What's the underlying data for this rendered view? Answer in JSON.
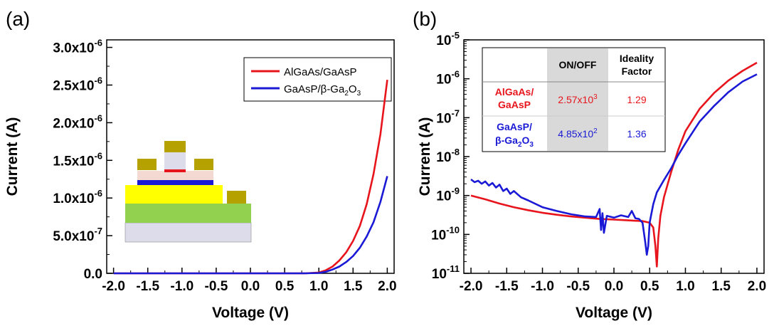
{
  "colors": {
    "red": "#e8141c",
    "blue": "#1a1ad6",
    "gold": "#b5a200",
    "yellow": "#ffff00",
    "green": "#92d050",
    "lavender": "#dcdceb",
    "pink": "#f4d9d3",
    "table_shade": "#d9d9d9"
  },
  "chart_data": [
    {
      "type": "line",
      "panel_label": "(a)",
      "xlabel": "Voltage (V)",
      "ylabel": "Current (A)",
      "xlim": [
        -2.1,
        2.1
      ],
      "ylim": [
        0,
        3.1e-06
      ],
      "x_ticks": [
        -2.0,
        -1.5,
        -1.0,
        -0.5,
        0.0,
        0.5,
        1.0,
        1.5,
        2.0
      ],
      "x_tick_labels": [
        "-2.0",
        "-1.5",
        "-1.0",
        "-0.5",
        "0.0",
        "0.5",
        "1.0",
        "1.5",
        "2.0"
      ],
      "y_ticks": [
        0,
        5e-07,
        1e-06,
        1.5e-06,
        2e-06,
        2.5e-06,
        3e-06
      ],
      "y_tick_labels": [
        {
          "m": "0.0",
          "e": ""
        },
        {
          "m": "5.0x10",
          "e": "-7"
        },
        {
          "m": "1.0x10",
          "e": "-6"
        },
        {
          "m": "1.5x10",
          "e": "-6"
        },
        {
          "m": "2.0x10",
          "e": "-6"
        },
        {
          "m": "2.5x10",
          "e": "-6"
        },
        {
          "m": "3.0x10",
          "e": "-6"
        }
      ],
      "legend": [
        {
          "text": "AlGaAs/GaAsP",
          "color": "#e8141c"
        },
        {
          "text": "GaAsP/β-Ga",
          "sub": "2",
          "text2": "O",
          "sub2": "3",
          "color": "#1a1ad6"
        }
      ],
      "series": [
        {
          "name": "AlGaAs/GaAsP",
          "color": "#e8141c",
          "x": [
            -2.0,
            -1.0,
            0.0,
            0.5,
            0.8,
            1.0,
            1.1,
            1.2,
            1.3,
            1.4,
            1.5,
            1.6,
            1.7,
            1.8,
            1.9,
            2.0
          ],
          "y": [
            0,
            0,
            0,
            0,
            0,
            1e-08,
            4e-08,
            9e-08,
            1.7e-07,
            2.8e-07,
            4.3e-07,
            6.3e-07,
            9.2e-07,
            1.32e-06,
            1.85e-06,
            2.57e-06
          ]
        },
        {
          "name": "GaAsP/β-Ga2O3",
          "color": "#1a1ad6",
          "x": [
            -2.0,
            -1.0,
            0.0,
            0.5,
            0.8,
            1.0,
            1.1,
            1.2,
            1.3,
            1.4,
            1.5,
            1.6,
            1.7,
            1.8,
            1.9,
            2.0
          ],
          "y": [
            0,
            0,
            0,
            0,
            0,
            5e-09,
            2e-08,
            5e-08,
            9e-08,
            1.5e-07,
            2.3e-07,
            3.4e-07,
            4.9e-07,
            6.8e-07,
            9.5e-07,
            1.29e-06
          ]
        }
      ]
    },
    {
      "type": "line",
      "panel_label": "(b)",
      "xlabel": "Voltage (V)",
      "ylabel": "Current (A)",
      "yscale": "log",
      "xlim": [
        -2.1,
        2.1
      ],
      "ylim": [
        1e-11,
        1e-05
      ],
      "x_ticks": [
        -2.0,
        -1.5,
        -1.0,
        -0.5,
        0.0,
        0.5,
        1.0,
        1.5,
        2.0
      ],
      "x_tick_labels": [
        "-2.0",
        "-1.5",
        "-1.0",
        "-0.5",
        "0.0",
        "0.5",
        "1.0",
        "1.5",
        "2.0"
      ],
      "y_ticks": [
        1e-11,
        1e-10,
        1e-09,
        1e-08,
        1e-07,
        1e-06,
        1e-05
      ],
      "y_tick_labels": [
        {
          "m": "10",
          "e": "-11"
        },
        {
          "m": "10",
          "e": "-10"
        },
        {
          "m": "10",
          "e": "-9"
        },
        {
          "m": "10",
          "e": "-8"
        },
        {
          "m": "10",
          "e": "-7"
        },
        {
          "m": "10",
          "e": "-6"
        },
        {
          "m": "10",
          "e": "-5"
        }
      ],
      "table": {
        "headers": [
          "ON/OFF",
          "Ideality",
          "Factor"
        ],
        "rows": [
          {
            "label1": "AlGaAs/",
            "label2": "GaAsP",
            "on_off": "2.57x10",
            "on_off_exp": "3",
            "ideality": "1.29",
            "color": "#e8141c"
          },
          {
            "label1": "GaAsP/",
            "label2": "β-Ga",
            "label2_sub": "2",
            "label2_mid": "O",
            "label2_sub2": "3",
            "on_off": "4.85x10",
            "on_off_exp": "2",
            "ideality": "1.36",
            "color": "#1a1ad6"
          }
        ]
      },
      "series": [
        {
          "name": "AlGaAs/GaAsP",
          "color": "#e8141c",
          "x": [
            -2.0,
            -1.8,
            -1.6,
            -1.4,
            -1.2,
            -1.0,
            -0.8,
            -0.6,
            -0.4,
            -0.2,
            0.0,
            0.2,
            0.4,
            0.5,
            0.55,
            0.58,
            0.6,
            0.62,
            0.65,
            0.7,
            0.8,
            0.9,
            1.0,
            1.2,
            1.4,
            1.6,
            1.8,
            2.0
          ],
          "y": [
            1e-09,
            8e-10,
            6.2e-10,
            5e-10,
            4.2e-10,
            3.6e-10,
            3.2e-10,
            2.9e-10,
            2.7e-10,
            2.5e-10,
            2.4e-10,
            2.3e-10,
            2.2e-10,
            2e-10,
            1.5e-10,
            5e-11,
            1.5e-11,
            8e-11,
            3e-10,
            9e-10,
            4e-09,
            1.5e-08,
            4.5e-08,
            1.7e-07,
            4.3e-07,
            9e-07,
            1.6e-06,
            2.6e-06
          ]
        },
        {
          "name": "GaAsP/β-Ga2O3",
          "color": "#1a1ad6",
          "x": [
            -2.0,
            -1.95,
            -1.9,
            -1.85,
            -1.8,
            -1.75,
            -1.7,
            -1.65,
            -1.6,
            -1.55,
            -1.5,
            -1.45,
            -1.4,
            -1.3,
            -1.2,
            -1.0,
            -0.8,
            -0.6,
            -0.4,
            -0.25,
            -0.2,
            -0.18,
            -0.16,
            -0.14,
            -0.1,
            0.0,
            0.1,
            0.2,
            0.25,
            0.3,
            0.35,
            0.4,
            0.44,
            0.46,
            0.48,
            0.5,
            0.55,
            0.6,
            0.7,
            0.8,
            0.9,
            1.0,
            1.2,
            1.4,
            1.6,
            1.8,
            2.0
          ],
          "y": [
            2.6e-09,
            2.2e-09,
            2.4e-09,
            2e-09,
            2.3e-09,
            1.8e-09,
            2.1e-09,
            1.6e-09,
            1.9e-09,
            1.3e-09,
            1.5e-09,
            1.1e-09,
            1.3e-09,
            9e-10,
            7.5e-10,
            5e-10,
            4e-10,
            3.3e-10,
            2.9e-10,
            2.8e-10,
            4.5e-10,
            1.3e-10,
            3.5e-10,
            1.1e-10,
            3e-10,
            2.7e-10,
            3.1e-10,
            2.8e-10,
            4e-10,
            2.6e-10,
            2.5e-10,
            2e-10,
            6e-11,
            3e-11,
            5e-11,
            2e-10,
            6e-10,
            1.2e-09,
            2.5e-09,
            5e-09,
            1.1e-08,
            2.2e-08,
            8e-08,
            2e-07,
            4.5e-07,
            8.5e-07,
            1.3e-06
          ]
        }
      ]
    }
  ]
}
